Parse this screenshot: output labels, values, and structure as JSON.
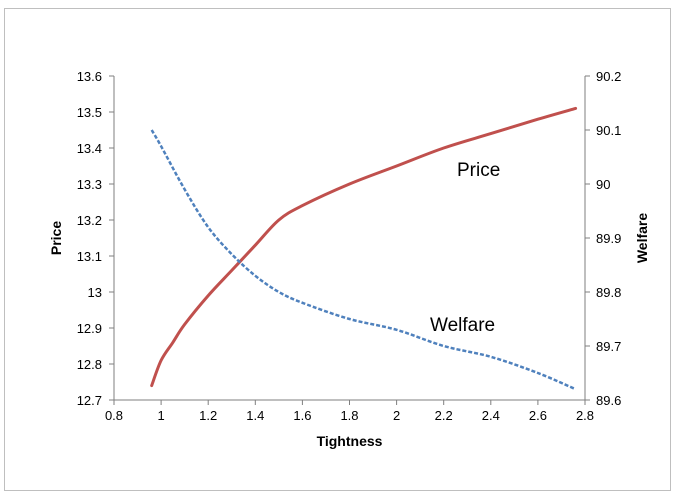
{
  "chart_data": {
    "type": "line",
    "title": "",
    "xlabel": "Tightness",
    "ylabel": "Price",
    "y2label": "Welfare",
    "xlim": [
      0.8,
      2.8
    ],
    "ylim": [
      12.7,
      13.6
    ],
    "y2lim": [
      89.6,
      90.2
    ],
    "xticks": [
      "0.8",
      "1",
      "1.2",
      "1.4",
      "1.6",
      "1.8",
      "2",
      "2.2",
      "2.4",
      "2.6",
      "2.8"
    ],
    "yticks": [
      "12.7",
      "12.8",
      "12.9",
      "13",
      "13.1",
      "13.2",
      "13.3",
      "13.4",
      "13.5",
      "13.6"
    ],
    "y2ticks": [
      "89.6",
      "89.7",
      "89.8",
      "89.9",
      "90",
      "90.1",
      "90.2"
    ],
    "grid": false,
    "legend": "none",
    "annotations": [
      {
        "text": "Price",
        "series": "Price"
      },
      {
        "text": "Welfare",
        "series": "Welfare"
      }
    ],
    "series": [
      {
        "name": "Price",
        "axis": "left",
        "color": "#c0504d",
        "style": "solid",
        "x": [
          0.96,
          1.0,
          1.05,
          1.1,
          1.2,
          1.3,
          1.4,
          1.5,
          1.6,
          1.8,
          2.0,
          2.2,
          2.4,
          2.6,
          2.76
        ],
        "y": [
          12.74,
          12.81,
          12.86,
          12.91,
          12.99,
          13.06,
          13.13,
          13.2,
          13.24,
          13.3,
          13.35,
          13.4,
          13.44,
          13.48,
          13.51
        ]
      },
      {
        "name": "Welfare",
        "axis": "right",
        "color": "#4f81bd",
        "style": "dashed",
        "x": [
          0.96,
          1.0,
          1.1,
          1.2,
          1.3,
          1.4,
          1.5,
          1.6,
          1.8,
          2.0,
          2.2,
          2.4,
          2.6,
          2.76
        ],
        "y": [
          90.1,
          90.07,
          89.99,
          89.92,
          89.87,
          89.83,
          89.8,
          89.78,
          89.75,
          89.73,
          89.7,
          89.68,
          89.65,
          89.62
        ]
      }
    ]
  }
}
